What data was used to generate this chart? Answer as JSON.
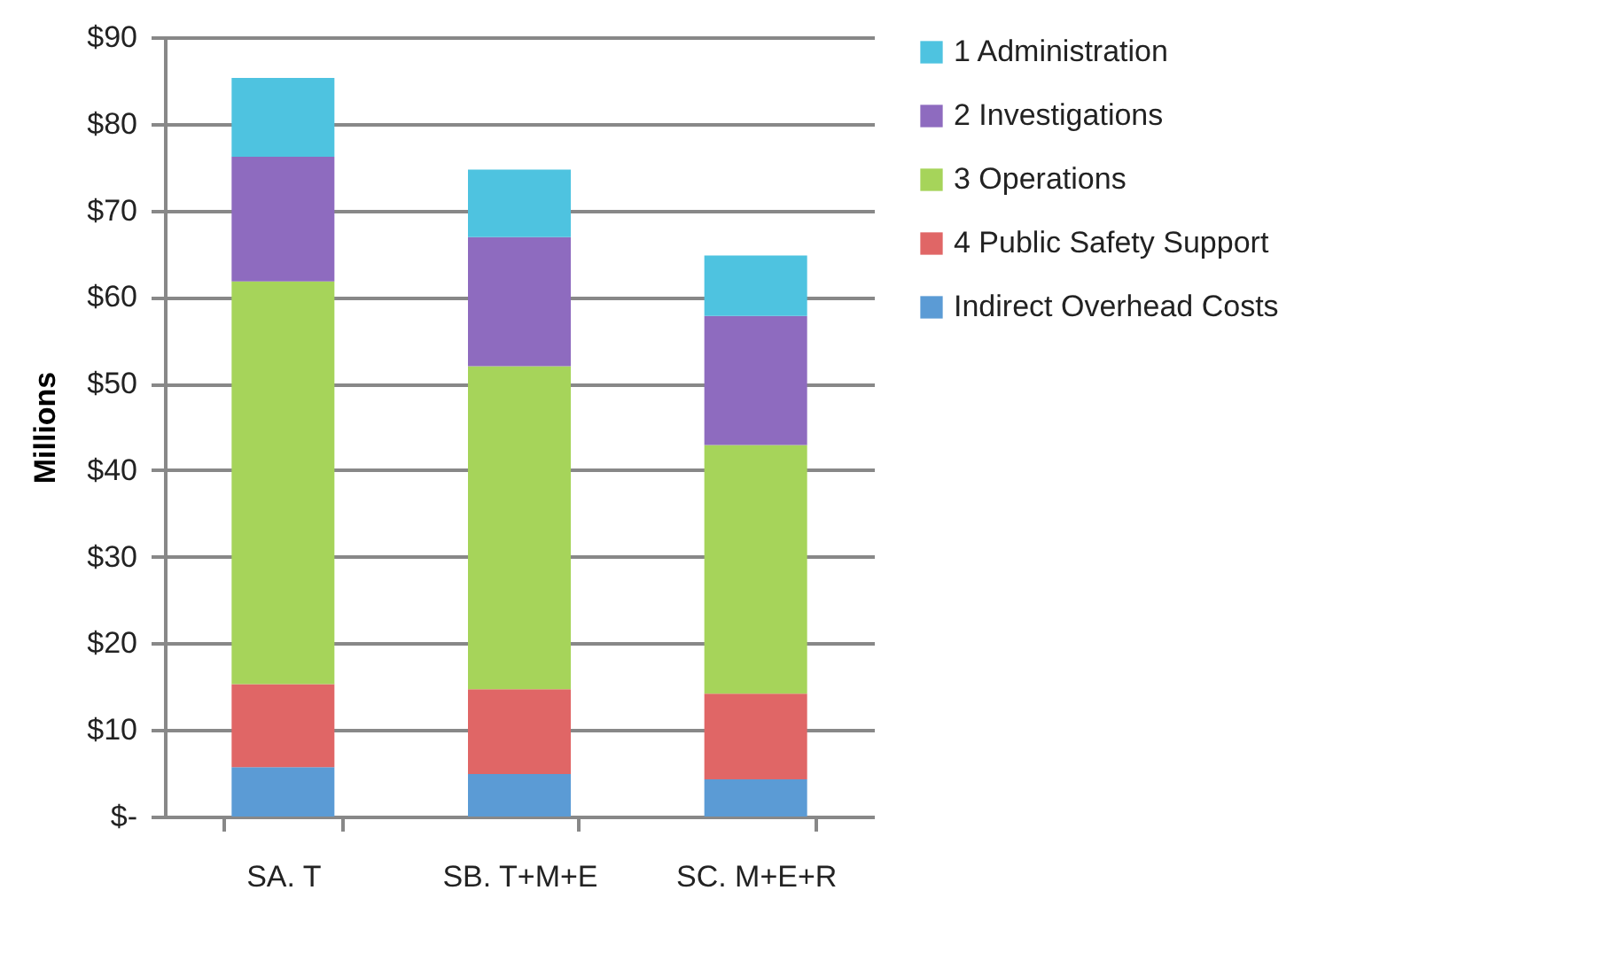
{
  "chart_data": {
    "type": "bar",
    "stacked": true,
    "ylabel": "Millions",
    "categories": [
      "SA. T",
      "SB. T+M+E",
      "SC. M+E+R"
    ],
    "series": [
      {
        "name": "Indirect Overhead Costs",
        "color": "#5b9bd5",
        "values": [
          5.7,
          4.9,
          4.3
        ]
      },
      {
        "name": "4 Public Safety Support",
        "color": "#e06666",
        "values": [
          9.6,
          9.8,
          9.9
        ]
      },
      {
        "name": "3 Operations",
        "color": "#a6d45a",
        "values": [
          46.5,
          37.3,
          28.7
        ]
      },
      {
        "name": "2 Investigations",
        "color": "#8e6bbf",
        "values": [
          14.4,
          14.9,
          14.9
        ]
      },
      {
        "name": "1 Administration",
        "color": "#4ec3e0",
        "values": [
          9.1,
          7.8,
          7.0
        ]
      }
    ],
    "ylim": [
      0,
      90
    ],
    "yticks": [
      {
        "value": 0,
        "label": "$-"
      },
      {
        "value": 10,
        "label": "$10"
      },
      {
        "value": 20,
        "label": "$20"
      },
      {
        "value": 30,
        "label": "$30"
      },
      {
        "value": 40,
        "label": "$40"
      },
      {
        "value": 50,
        "label": "$50"
      },
      {
        "value": 60,
        "label": "$60"
      },
      {
        "value": 70,
        "label": "$70"
      },
      {
        "value": 80,
        "label": "$80"
      },
      {
        "value": 90,
        "label": "$90"
      }
    ],
    "grid": "y",
    "legend": "right"
  }
}
